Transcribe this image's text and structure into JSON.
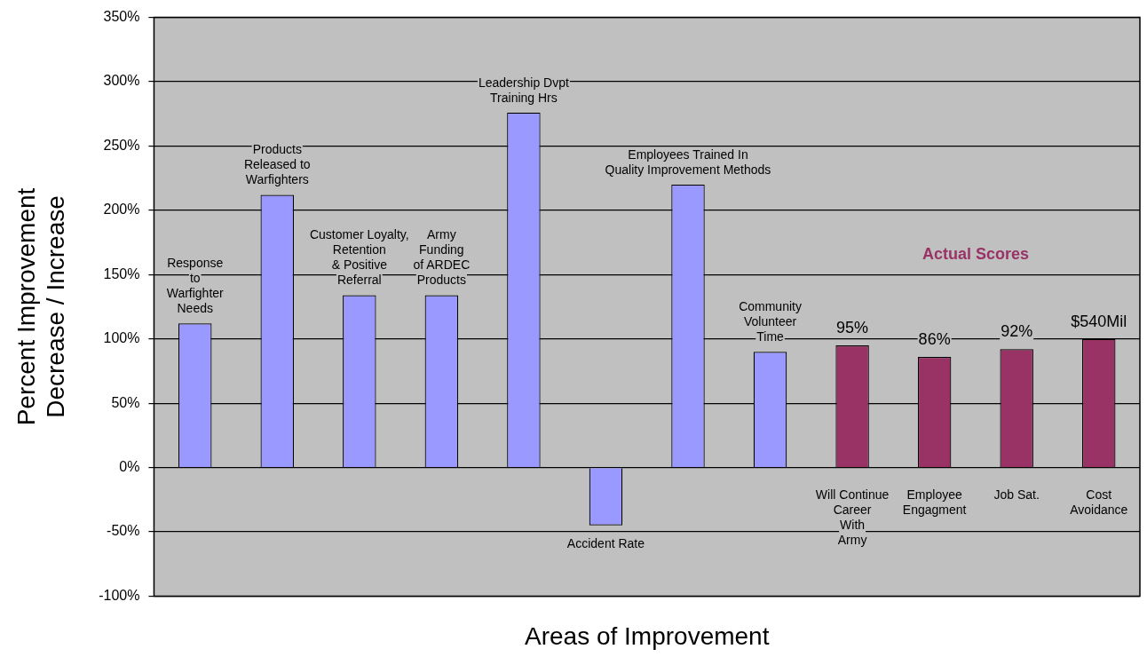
{
  "chart_data": {
    "type": "bar",
    "xlabel": "Areas of Improvement",
    "ylabel": "Percent Improvement\nDecrease / Increase",
    "categories": [
      "Response\nto\nWarfighter\nNeeds",
      "Products\nReleased to\nWarfighters",
      "Customer Loyalty,\nRetention\n& Positive\nReferral",
      "Army\nFunding\nof ARDEC\nProducts",
      "Leadership Dvpt\nTraining Hrs",
      "Accident Rate",
      "Employees Trained In\nQuality Improvement Methods",
      "Community\nVolunteer\nTime",
      "Will Continue\nCareer\nWith\nArmy",
      "Employee\nEngagment",
      "Job Sat.",
      "Cost\nAvoidance"
    ],
    "series": [
      {
        "color": "#9999ff",
        "values": [
          112,
          212,
          134,
          134,
          276,
          -45,
          220,
          90,
          null,
          null,
          null,
          null
        ]
      },
      {
        "name": "Actual Scores",
        "color": "#993366",
        "values": [
          null,
          null,
          null,
          null,
          null,
          null,
          null,
          null,
          95,
          86,
          92,
          100
        ],
        "value_labels": [
          null,
          null,
          null,
          null,
          null,
          null,
          null,
          null,
          "95%",
          "86%",
          "92%",
          null
        ]
      }
    ],
    "annotations": [
      {
        "text": "$540Mil",
        "x": "Cost\nAvoidance",
        "y": 100
      }
    ],
    "ylim": [
      -100,
      350
    ],
    "yticks": [
      {
        "value": -100,
        "label": "-100%"
      },
      {
        "value": -50,
        "label": "-50%"
      },
      {
        "value": 0,
        "label": "0%"
      },
      {
        "value": 50,
        "label": "50%"
      },
      {
        "value": 100,
        "label": "100%"
      },
      {
        "value": 150,
        "label": "150%"
      },
      {
        "value": 200,
        "label": "200%"
      },
      {
        "value": 250,
        "label": "250%"
      },
      {
        "value": 300,
        "label": "300%"
      },
      {
        "value": 350,
        "label": "350%"
      }
    ],
    "grid": "y",
    "legend": false,
    "tick_labels": "y"
  }
}
